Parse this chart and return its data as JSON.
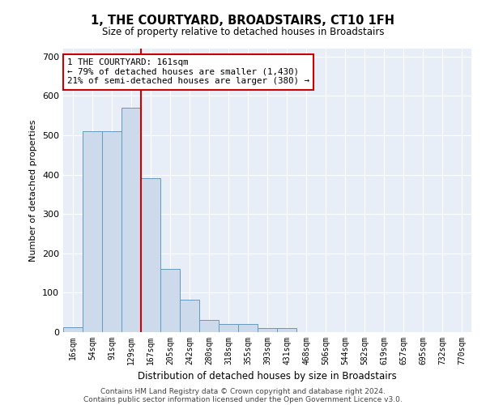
{
  "title": "1, THE COURTYARD, BROADSTAIRS, CT10 1FH",
  "subtitle": "Size of property relative to detached houses in Broadstairs",
  "xlabel": "Distribution of detached houses by size in Broadstairs",
  "ylabel": "Number of detached properties",
  "bar_color": "#ccdaeb",
  "bar_edge_color": "#6699bb",
  "background_color": "#e8eef8",
  "grid_color": "#ffffff",
  "tick_labels": [
    "16sqm",
    "54sqm",
    "91sqm",
    "129sqm",
    "167sqm",
    "205sqm",
    "242sqm",
    "280sqm",
    "318sqm",
    "355sqm",
    "393sqm",
    "431sqm",
    "468sqm",
    "506sqm",
    "544sqm",
    "582sqm",
    "619sqm",
    "657sqm",
    "695sqm",
    "732sqm",
    "770sqm"
  ],
  "bar_values": [
    13,
    510,
    510,
    570,
    390,
    160,
    82,
    31,
    20,
    20,
    10,
    10,
    0,
    0,
    0,
    0,
    0,
    0,
    0,
    0,
    0
  ],
  "ylim": [
    0,
    720
  ],
  "yticks": [
    0,
    100,
    200,
    300,
    400,
    500,
    600,
    700
  ],
  "vline_x": 3.5,
  "vline_color": "#cc0000",
  "annotation_text": "1 THE COURTYARD: 161sqm\n← 79% of detached houses are smaller (1,430)\n21% of semi-detached houses are larger (380) →",
  "annotation_box_color": "#ffffff",
  "annotation_box_edge": "#cc0000",
  "footer1": "Contains HM Land Registry data © Crown copyright and database right 2024.",
  "footer2": "Contains public sector information licensed under the Open Government Licence v3.0."
}
